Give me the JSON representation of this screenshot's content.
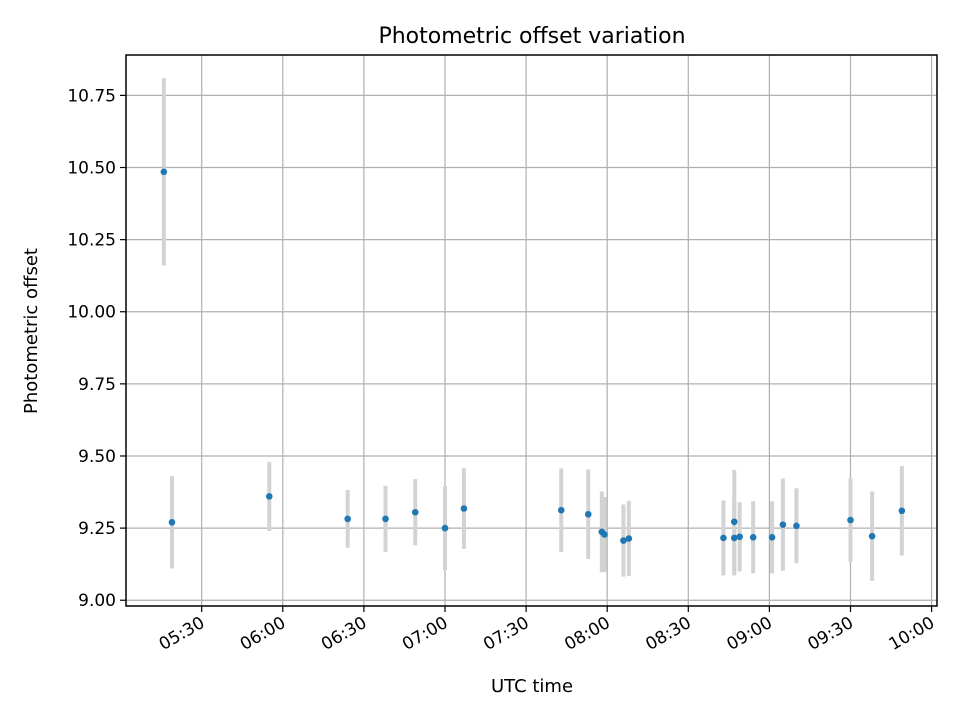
{
  "chart_data": {
    "type": "scatter",
    "title": "Photometric offset variation",
    "xlabel": "UTC time",
    "ylabel": "Photometric offset",
    "grid": true,
    "ylim": [
      8.98,
      10.89
    ],
    "xlim": [
      "05:02",
      "10:02"
    ],
    "y_ticks": [
      "9.00",
      "9.25",
      "9.50",
      "9.75",
      "10.00",
      "10.25",
      "10.50",
      "10.75"
    ],
    "x_ticks": [
      "05:30",
      "06:00",
      "06:30",
      "07:00",
      "07:30",
      "08:00",
      "08:30",
      "09:00",
      "09:30",
      "10:00"
    ],
    "colors": {
      "point": "#1f77b4",
      "errorbar": "#d3d3d3",
      "grid": "#b0b0b0"
    },
    "points": [
      {
        "x": "05:16",
        "y": 10.485,
        "err": 0.325
      },
      {
        "x": "05:19",
        "y": 9.27,
        "err": 0.16
      },
      {
        "x": "05:55",
        "y": 9.36,
        "err": 0.12
      },
      {
        "x": "06:24",
        "y": 9.282,
        "err": 0.1
      },
      {
        "x": "06:38",
        "y": 9.282,
        "err": 0.115
      },
      {
        "x": "06:49",
        "y": 9.305,
        "err": 0.115
      },
      {
        "x": "07:00",
        "y": 9.25,
        "err": 0.145
      },
      {
        "x": "07:07",
        "y": 9.318,
        "err": 0.14
      },
      {
        "x": "07:43",
        "y": 9.312,
        "err": 0.145
      },
      {
        "x": "07:53",
        "y": 9.298,
        "err": 0.155
      },
      {
        "x": "07:58",
        "y": 9.237,
        "err": 0.14
      },
      {
        "x": "07:59",
        "y": 9.228,
        "err": 0.13
      },
      {
        "x": "08:06",
        "y": 9.207,
        "err": 0.125
      },
      {
        "x": "08:08",
        "y": 9.214,
        "err": 0.13
      },
      {
        "x": "08:43",
        "y": 9.216,
        "err": 0.13
      },
      {
        "x": "08:47",
        "y": 9.216,
        "err": 0.13
      },
      {
        "x": "08:47",
        "y": 9.272,
        "err": 0.18
      },
      {
        "x": "08:49",
        "y": 9.22,
        "err": 0.12
      },
      {
        "x": "08:54",
        "y": 9.218,
        "err": 0.125
      },
      {
        "x": "09:01",
        "y": 9.218,
        "err": 0.125
      },
      {
        "x": "09:05",
        "y": 9.262,
        "err": 0.16
      },
      {
        "x": "09:10",
        "y": 9.258,
        "err": 0.13
      },
      {
        "x": "09:30",
        "y": 9.278,
        "err": 0.145
      },
      {
        "x": "09:38",
        "y": 9.222,
        "err": 0.155
      },
      {
        "x": "09:49",
        "y": 9.31,
        "err": 0.155
      }
    ]
  }
}
